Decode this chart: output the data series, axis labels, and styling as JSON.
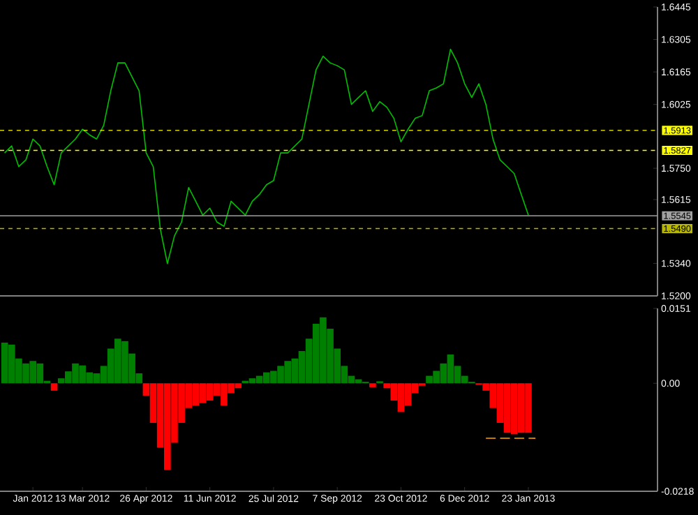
{
  "chart_data": [
    {
      "type": "line",
      "tick_labels": "y",
      "categories": [
        null,
        null,
        null,
        null,
        null,
        null,
        null,
        null,
        null,
        null,
        null,
        null,
        null,
        null,
        null,
        null,
        null,
        null,
        null,
        null,
        null,
        null,
        null,
        null,
        null,
        null,
        null,
        null,
        null,
        null,
        null,
        null,
        null,
        null,
        null,
        null,
        null,
        null,
        null,
        null,
        null,
        null,
        null,
        null,
        null,
        null,
        null,
        null,
        null,
        null,
        null,
        null,
        null,
        null,
        null,
        null,
        null,
        null,
        null,
        null,
        null,
        null,
        null,
        null,
        null,
        null,
        null,
        null,
        null,
        null,
        null,
        null,
        null,
        null,
        null,
        null,
        null,
        null,
        null,
        null,
        null,
        null,
        null,
        null,
        null,
        null,
        null,
        null,
        null,
        null,
        null,
        null,
        null
      ],
      "series": [
        {
          "color": "#00c000",
          "values": [
            1.5816,
            1.5846,
            1.5757,
            1.5786,
            1.5876,
            1.5846,
            1.5757,
            1.5679,
            1.5816,
            1.5846,
            1.5876,
            1.5918,
            1.5894,
            1.5876,
            1.5935,
            1.6084,
            1.6204,
            1.6204,
            1.6144,
            1.6084,
            1.5816,
            1.5757,
            1.5488,
            1.5339,
            1.5459,
            1.5518,
            1.5667,
            1.5608,
            1.5548,
            1.5578,
            1.5518,
            1.55,
            1.5608,
            1.5578,
            1.5548,
            1.5608,
            1.5637,
            1.5679,
            1.5697,
            1.5816,
            1.5816,
            1.5846,
            1.5876,
            1.6025,
            1.6174,
            1.6233,
            1.6204,
            1.6192,
            1.6174,
            1.6025,
            1.6055,
            1.6084,
            1.5995,
            1.6037,
            1.6013,
            1.5965,
            1.5864,
            1.5918,
            1.5965,
            1.5977,
            1.6084,
            1.6096,
            1.6114,
            1.6263,
            1.6204,
            1.6114,
            1.6055,
            1.6114,
            1.6025,
            1.5876,
            1.5786,
            1.5757,
            1.5727,
            1.5637,
            1.5548,
            null,
            null,
            null,
            null,
            null,
            null,
            null,
            null,
            null,
            null,
            null,
            null,
            null,
            null,
            null,
            null,
            null,
            null
          ]
        }
      ],
      "ylim": [
        1.52,
        1.6445
      ],
      "yticks": [
        {
          "value": 1.52,
          "label": "1.5200"
        },
        {
          "value": 1.534,
          "label": "1.5340"
        },
        1.5615,
        {
          "value": 1.575,
          "label": "1.5750"
        },
        1.6025,
        1.6165,
        1.6305,
        1.6445
      ],
      "ref_lines": [
        {
          "axis": "y",
          "value": 1.5913,
          "label": "1.5913",
          "color": "#ffff00",
          "line_style": "dashed"
        },
        {
          "axis": "y",
          "value": 1.5827,
          "label": "1.5827",
          "color": "#ffff00",
          "line_style": "dashed"
        },
        {
          "axis": "y",
          "value": 1.5545,
          "label": "1.5545",
          "color": "#a0a0a0",
          "line_style": "solid"
        },
        {
          "axis": "y",
          "value": 1.549,
          "label": "1.5490",
          "color": "#b8b800",
          "line_style": "dashed"
        }
      ]
    },
    {
      "type": "bar",
      "categories": [
        null,
        null,
        null,
        null,
        "Jan 2012",
        null,
        null,
        null,
        null,
        null,
        null,
        "13 Mar 2012",
        null,
        null,
        null,
        null,
        null,
        null,
        null,
        null,
        "26 Apr 2012",
        null,
        null,
        null,
        null,
        null,
        null,
        null,
        null,
        "11 Jun 2012",
        null,
        null,
        null,
        null,
        null,
        null,
        null,
        null,
        "25 Jul 2012",
        null,
        null,
        null,
        null,
        null,
        null,
        null,
        null,
        "7 Sep 2012",
        null,
        null,
        null,
        null,
        null,
        null,
        null,
        null,
        "23 Oct 2012",
        null,
        null,
        null,
        null,
        null,
        null,
        null,
        null,
        "6 Dec 2012",
        null,
        null,
        null,
        null,
        null,
        null,
        null,
        null,
        "23 Jan 2013",
        null,
        null,
        null,
        null,
        null,
        null,
        null,
        null,
        null,
        null,
        null,
        null,
        null,
        null,
        null,
        null,
        null,
        null
      ],
      "series": [
        {
          "values": [
            0.0082,
            0.0078,
            0.005,
            0.004,
            0.0045,
            0.004,
            0.0005,
            -0.0015,
            0.001,
            0.0024,
            0.004,
            0.0036,
            0.0022,
            0.002,
            0.0035,
            0.007,
            0.009,
            0.0085,
            0.006,
            0.002,
            -0.0025,
            -0.008,
            -0.013,
            -0.0175,
            -0.012,
            -0.008,
            -0.005,
            -0.0045,
            -0.004,
            -0.0035,
            -0.0025,
            -0.0045,
            -0.002,
            -0.001,
            0.0005,
            0.001,
            0.0015,
            0.0022,
            0.0025,
            0.0035,
            0.0045,
            0.005,
            0.0065,
            0.009,
            0.012,
            0.0133,
            0.011,
            0.007,
            0.0035,
            0.0015,
            0.0008,
            0.0003,
            -0.0008,
            0.0004,
            -0.001,
            -0.0035,
            -0.0058,
            -0.0045,
            -0.002,
            -0.0005,
            0.0015,
            0.0025,
            0.004,
            0.0058,
            0.0035,
            0.0015,
            0.0003,
            -0.0003,
            -0.0015,
            -0.005,
            -0.008,
            -0.01,
            -0.0103,
            -0.01,
            -0.01,
            null,
            null,
            null,
            null,
            null,
            null,
            null,
            null,
            null,
            null,
            null,
            null,
            null,
            null,
            null,
            null,
            null,
            null
          ],
          "colors": [
            "#008000",
            "#008000",
            "#008000",
            "#008000",
            "#008000",
            "#008000",
            "#008000",
            "#ff0000",
            "#008000",
            "#008000",
            "#008000",
            "#008000",
            "#008000",
            "#008000",
            "#008000",
            "#008000",
            "#008000",
            "#008000",
            "#008000",
            "#008000",
            "#ff0000",
            "#ff0000",
            "#ff0000",
            "#ff0000",
            "#ff0000",
            "#ff0000",
            "#ff0000",
            "#ff0000",
            "#ff0000",
            "#ff0000",
            "#ff0000",
            "#ff0000",
            "#ff0000",
            "#ff0000",
            "#008000",
            "#008000",
            "#008000",
            "#008000",
            "#008000",
            "#008000",
            "#008000",
            "#008000",
            "#008000",
            "#008000",
            "#008000",
            "#008000",
            "#008000",
            "#008000",
            "#008000",
            "#008000",
            "#008000",
            "#008000",
            "#ff0000",
            "#008000",
            "#ff0000",
            "#ff0000",
            "#ff0000",
            "#ff0000",
            "#ff0000",
            "#ff0000",
            "#008000",
            "#008000",
            "#008000",
            "#008000",
            "#008000",
            "#008000",
            "#008000",
            "#ff0000",
            "#ff0000",
            "#ff0000",
            "#ff0000",
            "#ff0000",
            "#ff0000",
            "#ff0000",
            "#ff0000",
            null,
            null,
            null,
            null,
            null,
            null,
            null,
            null,
            null,
            null,
            null,
            null,
            null,
            null,
            null,
            null,
            null,
            null
          ]
        },
        {
          "type": "line",
          "color": "#ffa500",
          "line_style": "dashed",
          "values": [
            null,
            null,
            null,
            null,
            null,
            null,
            null,
            null,
            null,
            null,
            null,
            null,
            null,
            null,
            null,
            null,
            null,
            null,
            null,
            null,
            null,
            null,
            null,
            null,
            null,
            null,
            null,
            null,
            null,
            null,
            null,
            null,
            null,
            null,
            null,
            null,
            null,
            null,
            null,
            null,
            null,
            null,
            null,
            null,
            null,
            null,
            null,
            null,
            null,
            null,
            null,
            null,
            null,
            null,
            null,
            null,
            null,
            null,
            null,
            null,
            null,
            null,
            null,
            null,
            null,
            null,
            null,
            null,
            -0.0111,
            -0.0111,
            -0.0111,
            -0.0111,
            -0.0111,
            -0.0111,
            -0.0111,
            -0.0111,
            null,
            null,
            null,
            null,
            null,
            null,
            null,
            null,
            null,
            null,
            null,
            null,
            null,
            null,
            null,
            null,
            null
          ]
        }
      ],
      "ylim": [
        -0.0218,
        0.0151
      ],
      "yticks": [
        -0.0218,
        {
          "value": 0,
          "label": "0.00"
        },
        0.0151
      ]
    }
  ]
}
